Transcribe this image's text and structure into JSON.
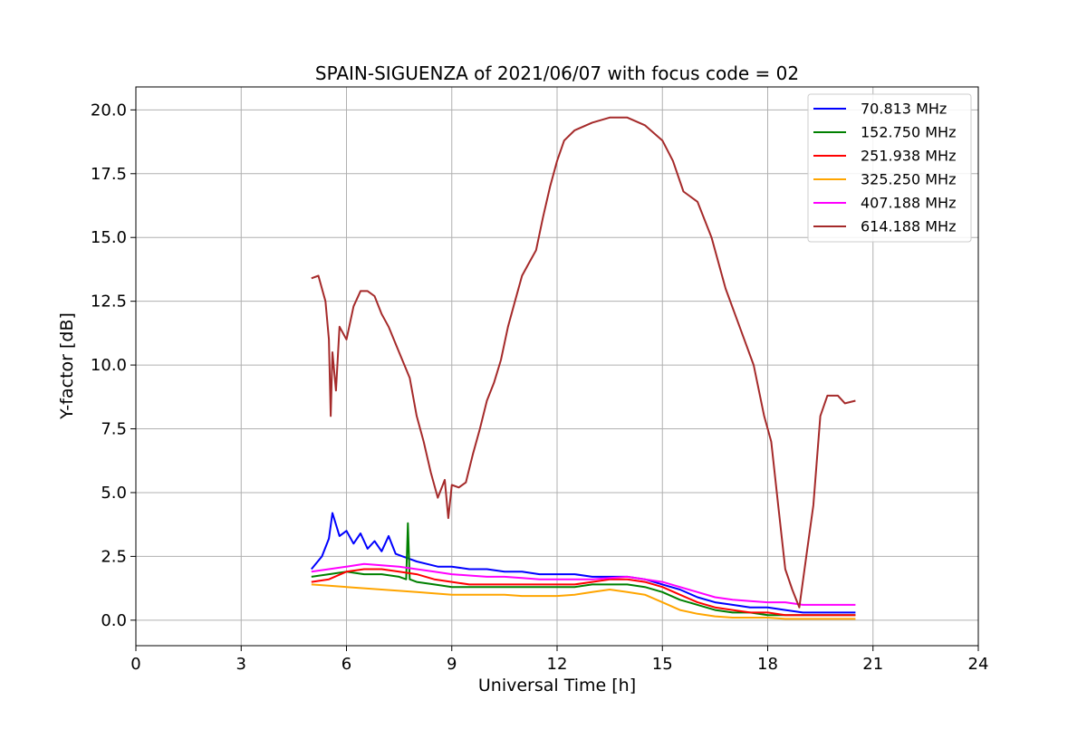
{
  "chart_data": {
    "type": "line",
    "title": "SPAIN-SIGUENZA of 2021/06/07 with focus code = 02",
    "xlabel": "Universal Time [h]",
    "ylabel": "Y-factor [dB]",
    "xlim": [
      0,
      24
    ],
    "ylim": [
      -1.0,
      20.9
    ],
    "xticks": [
      0,
      3,
      6,
      9,
      12,
      15,
      18,
      21,
      24
    ],
    "xtick_labels": [
      "0",
      "3",
      "6",
      "9",
      "12",
      "15",
      "18",
      "21",
      "24"
    ],
    "yticks": [
      0.0,
      2.5,
      5.0,
      7.5,
      10.0,
      12.5,
      15.0,
      17.5,
      20.0
    ],
    "ytick_labels": [
      "0.0",
      "2.5",
      "5.0",
      "7.5",
      "10.0",
      "12.5",
      "15.0",
      "17.5",
      "20.0"
    ],
    "grid": true,
    "legend_position": "top-right",
    "series": [
      {
        "name": " 70.813 MHz",
        "color": "#0000ff",
        "x": [
          5.0,
          5.3,
          5.5,
          5.6,
          5.8,
          6.0,
          6.2,
          6.4,
          6.6,
          6.8,
          7.0,
          7.2,
          7.4,
          7.6,
          7.8,
          8.0,
          8.3,
          8.6,
          9.0,
          9.5,
          10.0,
          10.5,
          11.0,
          11.5,
          12.0,
          12.5,
          13.0,
          13.5,
          14.0,
          14.5,
          15.0,
          15.5,
          16.0,
          16.5,
          17.0,
          17.5,
          18.0,
          18.5,
          19.0,
          19.5,
          20.0,
          20.5
        ],
        "y": [
          2.0,
          2.5,
          3.2,
          4.2,
          3.3,
          3.5,
          3.0,
          3.4,
          2.8,
          3.1,
          2.7,
          3.3,
          2.6,
          2.5,
          2.4,
          2.3,
          2.2,
          2.1,
          2.1,
          2.0,
          2.0,
          1.9,
          1.9,
          1.8,
          1.8,
          1.8,
          1.7,
          1.7,
          1.7,
          1.6,
          1.4,
          1.2,
          0.9,
          0.7,
          0.6,
          0.5,
          0.5,
          0.4,
          0.3,
          0.3,
          0.3,
          0.3
        ]
      },
      {
        "name": "152.750 MHz",
        "color": "#008000",
        "x": [
          5.0,
          5.5,
          6.0,
          6.5,
          7.0,
          7.5,
          7.7,
          7.75,
          7.8,
          8.0,
          8.5,
          9.0,
          9.5,
          10.0,
          10.5,
          11.0,
          11.5,
          12.0,
          12.5,
          13.0,
          13.5,
          14.0,
          14.5,
          15.0,
          15.5,
          16.0,
          16.5,
          17.0,
          17.5,
          18.0,
          18.5,
          19.0,
          19.5,
          20.0,
          20.5
        ],
        "y": [
          1.7,
          1.8,
          1.9,
          1.8,
          1.8,
          1.7,
          1.6,
          3.8,
          1.6,
          1.5,
          1.4,
          1.3,
          1.3,
          1.3,
          1.3,
          1.3,
          1.3,
          1.3,
          1.3,
          1.4,
          1.4,
          1.4,
          1.3,
          1.1,
          0.8,
          0.6,
          0.4,
          0.3,
          0.3,
          0.2,
          0.2,
          0.2,
          0.2,
          0.2,
          0.2
        ]
      },
      {
        "name": "251.938 MHz",
        "color": "#ff0000",
        "x": [
          5.0,
          5.5,
          6.0,
          6.5,
          7.0,
          7.5,
          8.0,
          8.5,
          9.0,
          9.5,
          10.0,
          10.5,
          11.0,
          11.5,
          12.0,
          12.5,
          13.0,
          13.5,
          14.0,
          14.5,
          15.0,
          15.5,
          16.0,
          16.5,
          17.0,
          17.5,
          18.0,
          18.5,
          19.0,
          19.5,
          20.0,
          20.5
        ],
        "y": [
          1.5,
          1.6,
          1.9,
          2.0,
          2.0,
          1.9,
          1.8,
          1.6,
          1.5,
          1.4,
          1.4,
          1.4,
          1.4,
          1.4,
          1.4,
          1.4,
          1.5,
          1.6,
          1.6,
          1.5,
          1.3,
          1.0,
          0.7,
          0.5,
          0.4,
          0.3,
          0.3,
          0.2,
          0.2,
          0.2,
          0.2,
          0.2
        ]
      },
      {
        "name": "325.250 MHz",
        "color": "#ffa500",
        "x": [
          5.0,
          5.5,
          6.0,
          6.5,
          7.0,
          7.5,
          8.0,
          8.5,
          9.0,
          9.5,
          10.0,
          10.5,
          11.0,
          11.5,
          12.0,
          12.5,
          13.0,
          13.5,
          14.0,
          14.5,
          15.0,
          15.5,
          16.0,
          16.5,
          17.0,
          17.5,
          18.0,
          18.5,
          19.0,
          19.5,
          20.0,
          20.5
        ],
        "y": [
          1.4,
          1.35,
          1.3,
          1.25,
          1.2,
          1.15,
          1.1,
          1.05,
          1.0,
          1.0,
          1.0,
          1.0,
          0.95,
          0.95,
          0.95,
          1.0,
          1.1,
          1.2,
          1.1,
          1.0,
          0.7,
          0.4,
          0.25,
          0.15,
          0.1,
          0.1,
          0.1,
          0.05,
          0.05,
          0.05,
          0.05,
          0.05
        ]
      },
      {
        "name": "407.188 MHz",
        "color": "#ff00ff",
        "x": [
          5.0,
          5.5,
          6.0,
          6.5,
          7.0,
          7.5,
          8.0,
          8.5,
          9.0,
          9.5,
          10.0,
          10.5,
          11.0,
          11.5,
          12.0,
          12.5,
          13.0,
          13.5,
          14.0,
          14.5,
          15.0,
          15.5,
          16.0,
          16.5,
          17.0,
          17.5,
          18.0,
          18.5,
          19.0,
          19.5,
          20.0,
          20.5
        ],
        "y": [
          1.9,
          2.0,
          2.1,
          2.2,
          2.15,
          2.1,
          2.0,
          1.9,
          1.8,
          1.75,
          1.7,
          1.7,
          1.65,
          1.6,
          1.6,
          1.6,
          1.6,
          1.65,
          1.7,
          1.6,
          1.5,
          1.3,
          1.1,
          0.9,
          0.8,
          0.75,
          0.7,
          0.7,
          0.6,
          0.6,
          0.6,
          0.6
        ]
      },
      {
        "name": "614.188 MHz",
        "color": "#a52a2a",
        "x": [
          5.0,
          5.2,
          5.4,
          5.5,
          5.55,
          5.6,
          5.7,
          5.8,
          6.0,
          6.2,
          6.4,
          6.6,
          6.8,
          7.0,
          7.2,
          7.5,
          7.8,
          8.0,
          8.2,
          8.4,
          8.6,
          8.8,
          8.9,
          9.0,
          9.2,
          9.4,
          9.6,
          9.8,
          10.0,
          10.2,
          10.4,
          10.6,
          10.8,
          11.0,
          11.2,
          11.4,
          11.6,
          11.8,
          12.0,
          12.2,
          12.5,
          13.0,
          13.5,
          14.0,
          14.5,
          15.0,
          15.3,
          15.6,
          16.0,
          16.4,
          16.8,
          17.2,
          17.6,
          17.9,
          18.1,
          18.3,
          18.5,
          18.7,
          18.9,
          19.1,
          19.3,
          19.5,
          19.7,
          20.0,
          20.2,
          20.5
        ],
        "y": [
          13.4,
          13.5,
          12.5,
          11.0,
          8.0,
          10.5,
          9.0,
          11.5,
          11.0,
          12.3,
          12.9,
          12.9,
          12.7,
          12.0,
          11.5,
          10.5,
          9.5,
          8.0,
          7.0,
          5.8,
          4.8,
          5.5,
          4.0,
          5.3,
          5.2,
          5.4,
          6.5,
          7.5,
          8.6,
          9.3,
          10.2,
          11.5,
          12.5,
          13.5,
          14.0,
          14.5,
          15.8,
          17.0,
          18.0,
          18.8,
          19.2,
          19.5,
          19.7,
          19.7,
          19.4,
          18.8,
          18.0,
          16.8,
          16.4,
          15.0,
          13.0,
          11.5,
          10.0,
          8.0,
          7.0,
          4.5,
          2.0,
          1.2,
          0.5,
          2.5,
          4.5,
          8.0,
          8.8,
          8.8,
          8.5,
          8.6
        ]
      }
    ]
  }
}
